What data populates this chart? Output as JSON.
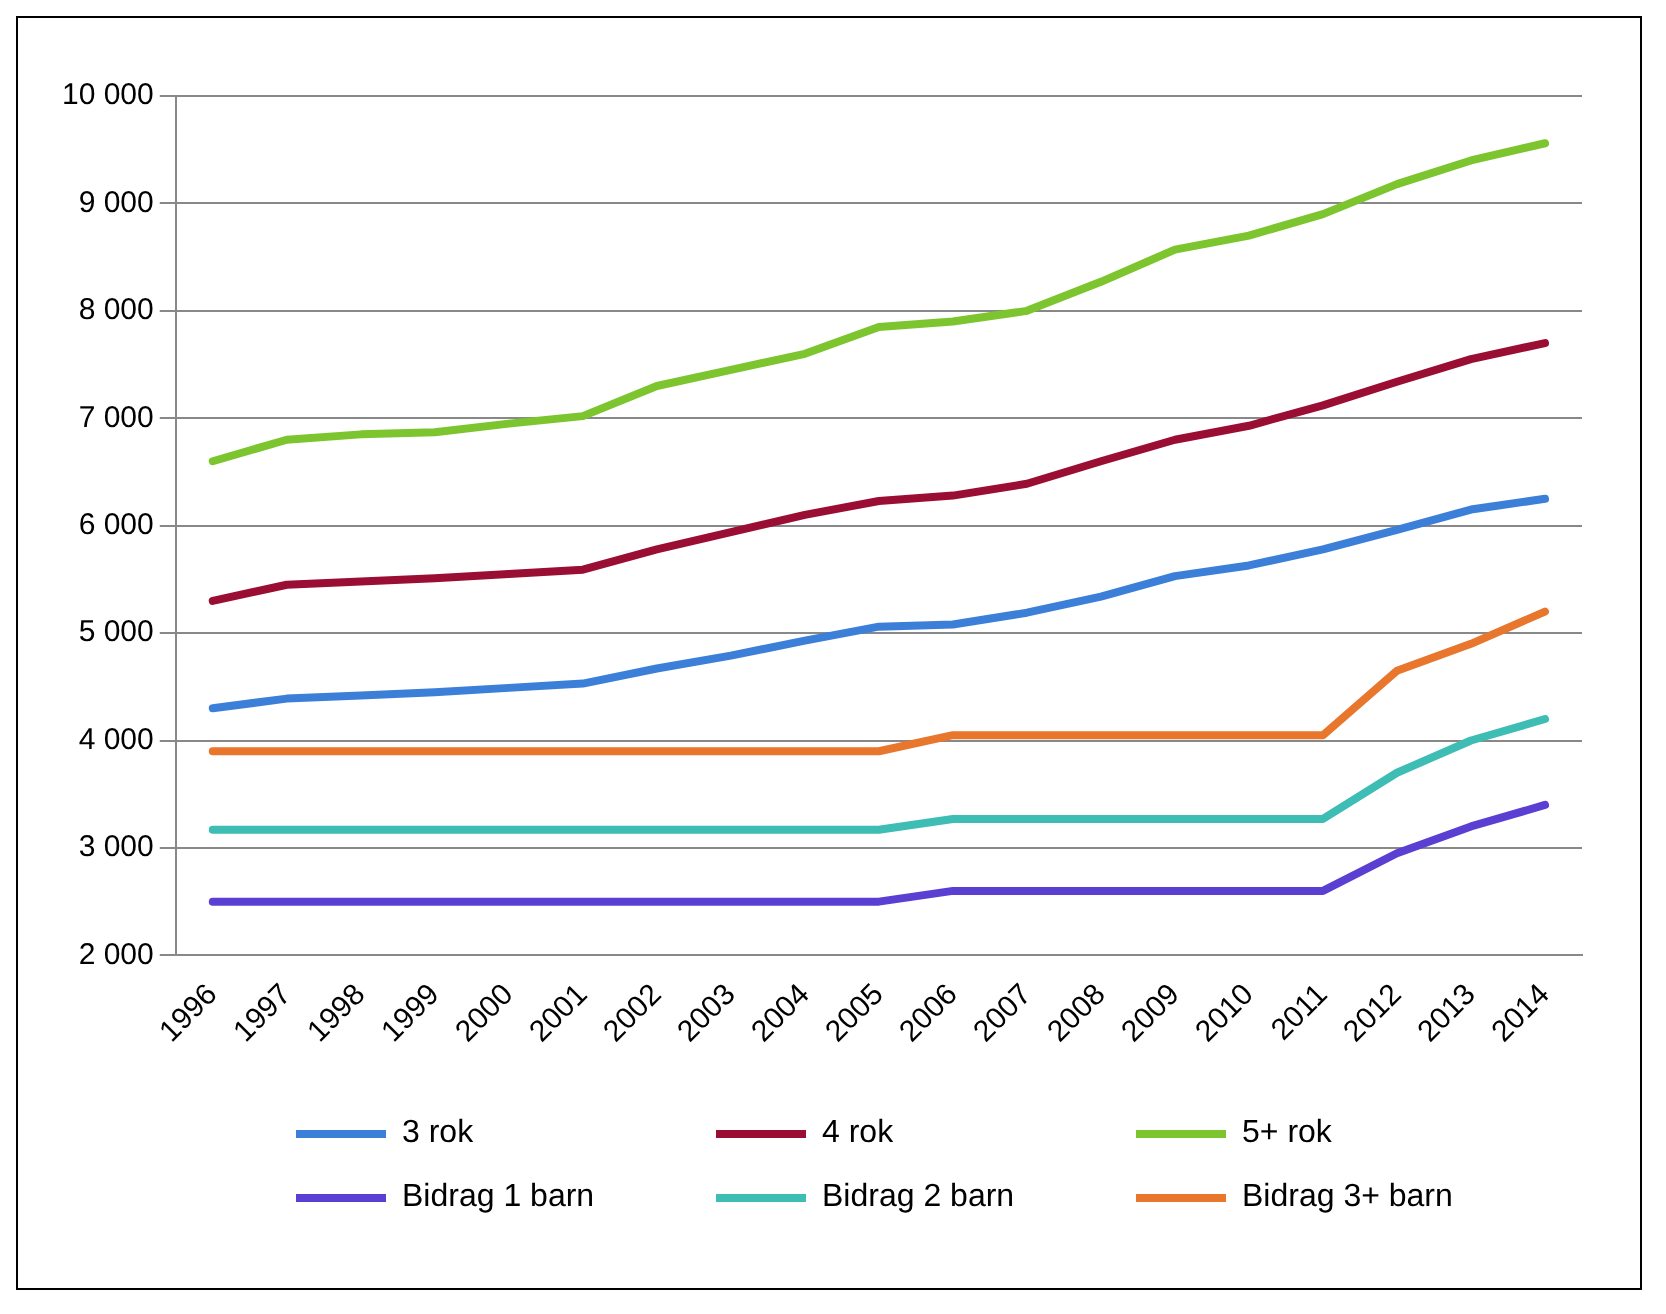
{
  "chart_data": {
    "type": "line",
    "categories": [
      "1996",
      "1997",
      "1998",
      "1999",
      "2000",
      "2001",
      "2002",
      "2003",
      "2004",
      "2005",
      "2006",
      "2007",
      "2008",
      "2009",
      "2010",
      "2011",
      "2012",
      "2013",
      "2014"
    ],
    "series": [
      {
        "name": "3 rok",
        "color": "#3c7fd8",
        "values": [
          4300,
          4390,
          4420,
          4450,
          4490,
          4530,
          4670,
          4790,
          4930,
          5060,
          5080,
          5190,
          5340,
          5530,
          5630,
          5780,
          5960,
          6150,
          6250
        ]
      },
      {
        "name": "4 rok",
        "color": "#9b0e33",
        "values": [
          5300,
          5450,
          5480,
          5510,
          5550,
          5590,
          5780,
          5940,
          6100,
          6230,
          6280,
          6390,
          6600,
          6800,
          6930,
          7120,
          7340,
          7550,
          7700
        ]
      },
      {
        "name": "5+ rok",
        "color": "#7cc52e",
        "values": [
          6600,
          6800,
          6850,
          6870,
          6950,
          7020,
          7300,
          7450,
          7600,
          7850,
          7900,
          8000,
          8270,
          8570,
          8700,
          8900,
          9180,
          9400,
          9560
        ]
      },
      {
        "name": "Bidrag 1 barn",
        "color": "#5b3fd3",
        "values": [
          2500,
          2500,
          2500,
          2500,
          2500,
          2500,
          2500,
          2500,
          2500,
          2500,
          2600,
          2600,
          2600,
          2600,
          2600,
          2600,
          2950,
          3200,
          3400
        ]
      },
      {
        "name": "Bidrag 2 barn",
        "color": "#3dbdb4",
        "values": [
          3170,
          3170,
          3170,
          3170,
          3170,
          3170,
          3170,
          3170,
          3170,
          3170,
          3270,
          3270,
          3270,
          3270,
          3270,
          3270,
          3700,
          4000,
          4200
        ]
      },
      {
        "name": "Bidrag 3+ barn",
        "color": "#e8762d",
        "values": [
          3900,
          3900,
          3900,
          3900,
          3900,
          3900,
          3900,
          3900,
          3900,
          3900,
          4050,
          4050,
          4050,
          4050,
          4050,
          4050,
          4650,
          4900,
          5200
        ]
      }
    ],
    "ylim": [
      2000,
      10000
    ],
    "yticks": [
      {
        "value": 2000,
        "label": "2 000"
      },
      {
        "value": 3000,
        "label": "3 000"
      },
      {
        "value": 4000,
        "label": "4 000"
      },
      {
        "value": 5000,
        "label": "5 000"
      },
      {
        "value": 6000,
        "label": "6 000"
      },
      {
        "value": 7000,
        "label": "7 000"
      },
      {
        "value": 8000,
        "label": "8 000"
      },
      {
        "value": 9000,
        "label": "9 000"
      },
      {
        "value": 10000,
        "label": "10 000"
      }
    ],
    "grid": "y",
    "legend": "bottom",
    "marker": "none",
    "line_style": "solid"
  }
}
